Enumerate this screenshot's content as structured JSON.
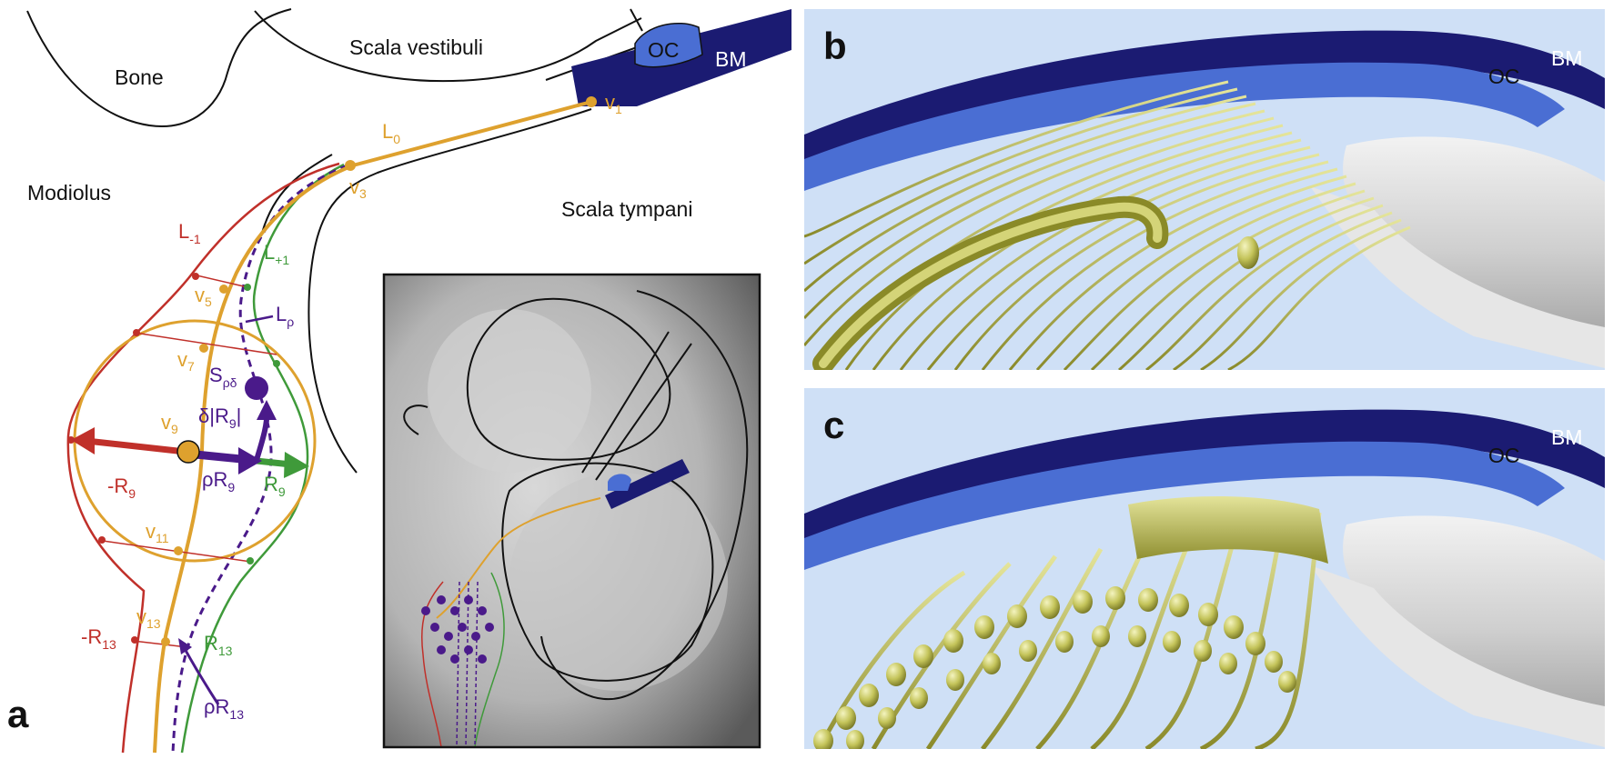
{
  "colors": {
    "orange": "#dea12e",
    "red": "#c0302a",
    "green": "#3f9a3a",
    "purple": "#4a1a8a",
    "navy": "#1b1b72",
    "oc_blue": "#4a6ed3",
    "fiber": "#c8c860",
    "sky": "#cfe0f6"
  },
  "panel_a": {
    "letter": "a",
    "regions": {
      "bone": "Bone",
      "scala_vestibuli": "Scala vestibuli",
      "scala_tympani": "Scala tympani",
      "modiolus": "Modiolus",
      "oc": "OC",
      "bm": "BM"
    },
    "curves": {
      "l0": {
        "main": "L",
        "sub": "0"
      },
      "lm1": {
        "main": "L",
        "sub": "-1"
      },
      "lp1": {
        "main": "L",
        "sub": "+1"
      },
      "lrho": {
        "main": "L",
        "sub": "ρ"
      }
    },
    "vertices": {
      "v1": {
        "main": "v",
        "sub": "1"
      },
      "v3": {
        "main": "v",
        "sub": "3"
      },
      "v5": {
        "main": "v",
        "sub": "5"
      },
      "v7": {
        "main": "v",
        "sub": "7"
      },
      "v9": {
        "main": "v",
        "sub": "9"
      },
      "v11": {
        "main": "v",
        "sub": "11"
      },
      "v13": {
        "main": "v",
        "sub": "13"
      }
    },
    "vectors": {
      "neg_r9": {
        "main": "-R",
        "sub": "9"
      },
      "r9": {
        "main": "R",
        "sub": "9"
      },
      "rho_r9": {
        "main": "ρR",
        "sub": "9"
      },
      "delta_r9": {
        "main": "δ|R",
        "sub": "9",
        "tail": "|"
      },
      "s_rho_delta": {
        "main": "S",
        "sub": "ρδ"
      },
      "neg_r13": {
        "main": "-R",
        "sub": "13"
      },
      "r13": {
        "main": "R",
        "sub": "13"
      },
      "rho_r13": {
        "main": "ρR",
        "sub": "13"
      }
    }
  },
  "panel_b": {
    "letter": "b",
    "oc": "OC",
    "bm": "BM"
  },
  "panel_c": {
    "letter": "c",
    "oc": "OC",
    "bm": "BM"
  }
}
